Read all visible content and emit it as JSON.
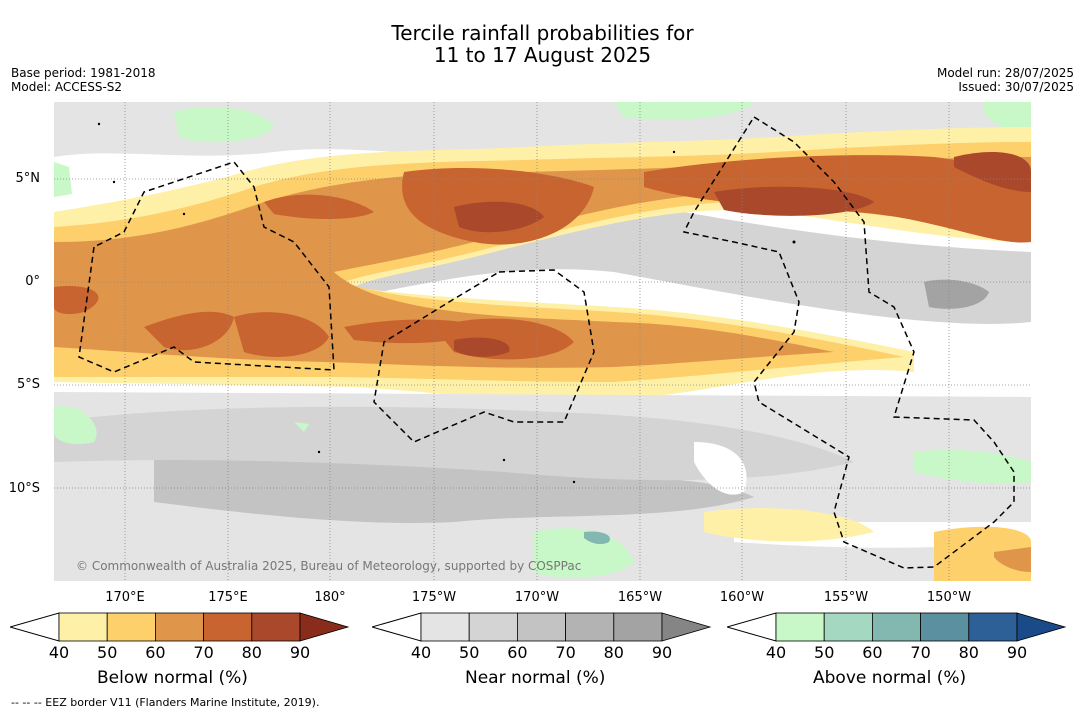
{
  "title_line1": "Tercile rainfall probabilities for",
  "title_line2": "11 to 17 August 2025",
  "base_period": "Base period: 1981-2018",
  "model": "Model: ACCESS-S2",
  "model_run": "Model run: 28/07/2025",
  "issued": "Issued: 30/07/2025",
  "lat_labels": [
    "5°N",
    "0°",
    "5°S",
    "10°S"
  ],
  "lon_labels": [
    "170°E",
    "175°E",
    "180°",
    "175°W",
    "170°W",
    "165°W",
    "160°W",
    "155°W",
    "150°W"
  ],
  "copyright": "© Commonwealth of Australia 2025, Bureau of Meteorology, supported by COSPPac",
  "colorbars": [
    {
      "label": "Below normal (%)",
      "ticks": [
        "40",
        "50",
        "60",
        "70",
        "80",
        "90"
      ],
      "colors": [
        "#fff0a8",
        "#fdd06b",
        "#e0964a",
        "#c8642f",
        "#a9482a",
        "#8a2c1c"
      ]
    },
    {
      "label": "Near normal (%)",
      "ticks": [
        "40",
        "50",
        "60",
        "70",
        "80",
        "90"
      ],
      "colors": [
        "#e4e4e4",
        "#d4d4d4",
        "#c3c3c3",
        "#b3b3b3",
        "#a3a3a3",
        "#858585"
      ]
    },
    {
      "label": "Above normal (%)",
      "ticks": [
        "40",
        "50",
        "60",
        "70",
        "80",
        "90"
      ],
      "colors": [
        "#c8f8c8",
        "#a4d8c0",
        "#82b8b0",
        "#5a90a0",
        "#2e6098",
        "#1a4a88"
      ]
    }
  ],
  "footer": "--  --  -- EEZ border V11 (Flanders Marine Institute, 2019)."
}
